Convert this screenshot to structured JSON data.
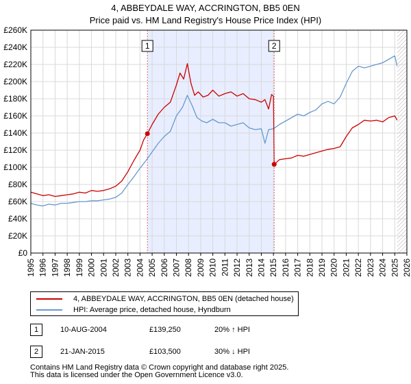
{
  "header": {
    "title": "4, ABBEYDALE WAY, ACCRINGTON, BB5 0EN",
    "subtitle": "Price paid vs. HM Land Registry's House Price Index (HPI)"
  },
  "colors": {
    "property_line": "#cc0000",
    "hpi_line": "#6699cc",
    "shade": "#e8eeff",
    "sale_marker_line": "#e06666",
    "future_hatch": "#999999"
  },
  "chart_data": {
    "type": "line",
    "title": "4, ABBEYDALE WAY, ACCRINGTON, BB5 0EN",
    "subtitle": "Price paid vs. HM Land Registry's House Price Index (HPI)",
    "xlabel": "",
    "ylabel": "",
    "xlim": [
      1995,
      2026
    ],
    "ylim": [
      0,
      260000
    ],
    "grid": true,
    "y_ticks": [
      0,
      20000,
      40000,
      60000,
      80000,
      100000,
      120000,
      140000,
      160000,
      180000,
      200000,
      220000,
      240000,
      260000
    ],
    "y_tick_labels": [
      "£0",
      "£20K",
      "£40K",
      "£60K",
      "£80K",
      "£100K",
      "£120K",
      "£140K",
      "£160K",
      "£180K",
      "£200K",
      "£220K",
      "£240K",
      "£260K"
    ],
    "x_ticks": [
      1995,
      1996,
      1997,
      1998,
      1999,
      2000,
      2001,
      2002,
      2003,
      2004,
      2005,
      2006,
      2007,
      2008,
      2009,
      2010,
      2011,
      2012,
      2013,
      2014,
      2015,
      2016,
      2017,
      2018,
      2019,
      2020,
      2021,
      2022,
      2023,
      2024,
      2025,
      2026
    ],
    "x_tick_labels": [
      "1995",
      "1996",
      "1997",
      "1998",
      "1999",
      "2000",
      "2001",
      "2002",
      "2003",
      "2004",
      "2005",
      "2006",
      "2007",
      "2008",
      "2009",
      "2010",
      "2011",
      "2012",
      "2013",
      "2014",
      "2015",
      "2016",
      "2017",
      "2018",
      "2019",
      "2020",
      "2021",
      "2022",
      "2023",
      "2024",
      "2025",
      "2026"
    ],
    "shaded_range": [
      2004.61,
      2015.06
    ],
    "future_from": 2025.2,
    "series": [
      {
        "name": "4, ABBEYDALE WAY, ACCRINGTON, BB5 0EN (detached house)",
        "color": "#cc0000",
        "x": [
          1995.0,
          1995.5,
          1996.0,
          1996.5,
          1997.0,
          1997.5,
          1998.0,
          1998.5,
          1999.0,
          1999.5,
          2000.0,
          2000.5,
          2001.0,
          2001.5,
          2002.0,
          2002.5,
          2003.0,
          2003.5,
          2004.0,
          2004.3,
          2004.61,
          2005.0,
          2005.5,
          2006.0,
          2006.5,
          2007.0,
          2007.3,
          2007.6,
          2007.9,
          2008.2,
          2008.5,
          2008.8,
          2009.2,
          2009.6,
          2010.0,
          2010.5,
          2011.0,
          2011.5,
          2012.0,
          2012.5,
          2013.0,
          2013.5,
          2014.0,
          2014.3,
          2014.6,
          2014.85,
          2015.0,
          2015.06,
          2015.5,
          2016.0,
          2016.5,
          2017.0,
          2017.5,
          2018.0,
          2018.5,
          2019.0,
          2019.5,
          2020.0,
          2020.5,
          2021.0,
          2021.5,
          2022.0,
          2022.5,
          2023.0,
          2023.5,
          2024.0,
          2024.5,
          2025.0,
          2025.2
        ],
        "values": [
          71000,
          69000,
          67000,
          68000,
          66000,
          67000,
          68000,
          69000,
          71000,
          70000,
          73000,
          72000,
          73000,
          75000,
          78000,
          84000,
          95000,
          108000,
          120000,
          132000,
          139250,
          150000,
          162000,
          170000,
          176000,
          196000,
          210000,
          203000,
          221000,
          198000,
          184000,
          188000,
          182000,
          184000,
          190000,
          183000,
          186000,
          188000,
          183000,
          186000,
          180000,
          179000,
          176000,
          179000,
          168000,
          185000,
          183000,
          103500,
          109000,
          110000,
          111000,
          114000,
          113000,
          115000,
          117000,
          119000,
          121000,
          122000,
          124000,
          136000,
          146000,
          150000,
          155000,
          154000,
          155000,
          153000,
          158000,
          160000,
          155000
        ]
      },
      {
        "name": "HPI: Average price, detached house, Hyndburn",
        "color": "#6699cc",
        "x": [
          1995.0,
          1995.5,
          1996.0,
          1996.5,
          1997.0,
          1997.5,
          1998.0,
          1998.5,
          1999.0,
          1999.5,
          2000.0,
          2000.5,
          2001.0,
          2001.5,
          2002.0,
          2002.5,
          2003.0,
          2003.5,
          2004.0,
          2004.5,
          2005.0,
          2005.5,
          2006.0,
          2006.5,
          2007.0,
          2007.5,
          2007.9,
          2008.3,
          2008.7,
          2009.1,
          2009.5,
          2010.0,
          2010.5,
          2011.0,
          2011.5,
          2012.0,
          2012.5,
          2013.0,
          2013.5,
          2014.0,
          2014.3,
          2014.6,
          2015.0,
          2015.5,
          2016.0,
          2016.5,
          2017.0,
          2017.5,
          2018.0,
          2018.5,
          2019.0,
          2019.5,
          2020.0,
          2020.5,
          2021.0,
          2021.5,
          2022.0,
          2022.5,
          2023.0,
          2023.5,
          2024.0,
          2024.5,
          2025.0,
          2025.2
        ],
        "values": [
          58000,
          56000,
          55000,
          57000,
          56000,
          58000,
          58000,
          59000,
          60000,
          60000,
          61000,
          61000,
          62000,
          63000,
          65000,
          70000,
          80000,
          89000,
          99000,
          108000,
          118000,
          128000,
          136000,
          142000,
          160000,
          170000,
          184000,
          172000,
          158000,
          154000,
          152000,
          156000,
          152000,
          152000,
          148000,
          150000,
          152000,
          146000,
          144000,
          145000,
          128000,
          144000,
          145000,
          150000,
          154000,
          158000,
          162000,
          160000,
          164000,
          167000,
          174000,
          177000,
          174000,
          182000,
          198000,
          212000,
          218000,
          216000,
          218000,
          220000,
          222000,
          226000,
          230000,
          218000
        ]
      }
    ],
    "sales": [
      {
        "id": "1",
        "year": 2004.61,
        "price": 139250,
        "date": "10-AUG-2004",
        "price_label": "£139,250",
        "hpi_label": "20% ↑ HPI"
      },
      {
        "id": "2",
        "year": 2015.06,
        "price": 103500,
        "date": "21-JAN-2015",
        "price_label": "£103,500",
        "hpi_label": "30% ↓ HPI"
      }
    ]
  },
  "legend": {
    "items": [
      {
        "label": "4, ABBEYDALE WAY, ACCRINGTON, BB5 0EN (detached house)",
        "color": "#cc0000"
      },
      {
        "label": "HPI: Average price, detached house, Hyndburn",
        "color": "#6699cc"
      }
    ]
  },
  "sales_table": [
    {
      "id": "1",
      "date": "10-AUG-2004",
      "price": "£139,250",
      "hpi": "20% ↑ HPI"
    },
    {
      "id": "2",
      "date": "21-JAN-2015",
      "price": "£103,500",
      "hpi": "30% ↓ HPI"
    }
  ],
  "footer": {
    "line1": "Contains HM Land Registry data © Crown copyright and database right 2025.",
    "line2": "This data is licensed under the Open Government Licence v3.0."
  }
}
